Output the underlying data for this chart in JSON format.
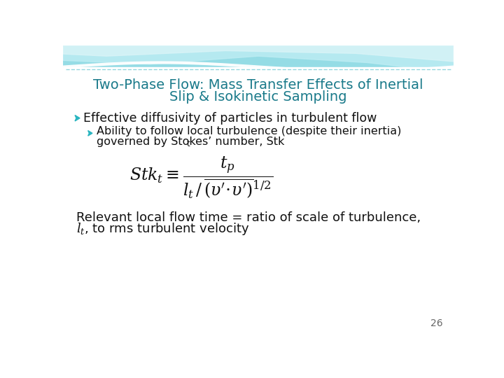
{
  "title_line1": "Two-Phase Flow: Mass Transfer Effects of Inertial",
  "title_line2": "Slip & Isokinetic Sampling",
  "title_color": "#1a7a8a",
  "bg_color": "#f5f5f5",
  "bullet1": "Effective diffusivity of particles in turbulent flow",
  "bullet2_line1": "Ability to follow local turbulence (despite their inertia)",
  "bullet2_line2": "governed by Stokes’ number, Stk",
  "arrow_color": "#2ab5c0",
  "page_number": "26",
  "bottom_text_line1": "Relevant local flow time = ratio of scale of turbulence,",
  "bottom_text_line2": ", to rms turbulent velocity"
}
